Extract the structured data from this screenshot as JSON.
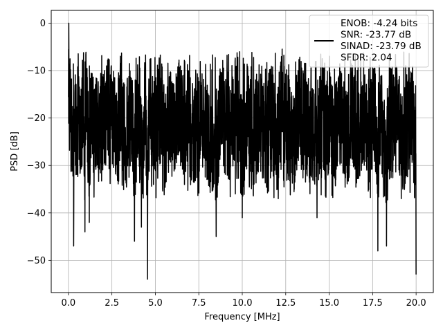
{
  "chart_data": {
    "type": "line",
    "title": "",
    "xlabel": "Frequency [MHz]",
    "ylabel": "PSD [dB]",
    "xlim": [
      -0.99,
      20.99
    ],
    "ylim": [
      -56.8,
      2.7
    ],
    "xticks": [
      0,
      2.5,
      5,
      7.5,
      10,
      12.5,
      15,
      17.5,
      20
    ],
    "xtick_labels": [
      "0.0",
      "2.5",
      "5.0",
      "7.5",
      "10.0",
      "12.5",
      "15.0",
      "17.5",
      "20.0"
    ],
    "yticks": [
      0,
      -10,
      -20,
      -30,
      -40,
      -50
    ],
    "ytick_labels": [
      "0",
      "−10",
      "−20",
      "−30",
      "−40",
      "−50"
    ],
    "grid": true,
    "legend_position": "top-right",
    "series": [
      {
        "name": "ENOB: -4.24 bits\nSNR: -23.77 dB\nSINAD: -23.79 dB\nSFDR: 2.04",
        "color": "#000000",
        "description": "dense noisy spectrum, mostly between -10 and -30 dB",
        "x": [
          0.0,
          0.02,
          0.04,
          0.06,
          0.1,
          0.15,
          0.2,
          0.25,
          0.3,
          0.35,
          0.45,
          0.55,
          0.65,
          0.75,
          0.85,
          0.95,
          1.0,
          1.2,
          1.3,
          1.5,
          1.8,
          2.0,
          2.2,
          2.5,
          2.8,
          3.0,
          3.3,
          3.6,
          3.8,
          4.0,
          4.2,
          4.4,
          4.55,
          4.7,
          5.0,
          5.3,
          5.6,
          5.8,
          6.0,
          6.3,
          6.6,
          6.9,
          7.2,
          7.5,
          7.8,
          8.1,
          8.5,
          8.8,
          9.0,
          9.3,
          9.6,
          10.0,
          10.3,
          10.6,
          11.0,
          11.3,
          11.6,
          12.0,
          12.3,
          12.6,
          13.0,
          13.3,
          13.6,
          14.0,
          14.3,
          14.6,
          14.8,
          15.0,
          15.3,
          15.6,
          16.0,
          16.3,
          16.6,
          17.0,
          17.3,
          17.6,
          17.8,
          18.0,
          18.3,
          18.6,
          18.9,
          19.2,
          19.5,
          19.8,
          20.0
        ],
        "y": [
          -19,
          0,
          -6,
          -28,
          -13,
          -18,
          -22,
          -26,
          -47,
          -16,
          -34,
          -12,
          -29,
          -22,
          -14,
          -44,
          -10,
          -42,
          -16,
          -30,
          -18,
          -24,
          -14,
          -19,
          -31,
          -11,
          -38,
          -21,
          -46,
          -16,
          -43,
          -24,
          -54,
          -15,
          -28,
          -12,
          -36,
          -20,
          -33,
          -14,
          -26,
          -20,
          -35,
          -17,
          -24,
          -34,
          -45,
          -13,
          -27,
          -31,
          -18,
          -41,
          -15,
          -39,
          -22,
          -35,
          -18,
          -38,
          -11,
          -25,
          -36,
          -14,
          -28,
          -30,
          -41,
          -15,
          -32,
          -22,
          -36,
          -19,
          -38,
          -15,
          -31,
          -24,
          -30,
          -17,
          -48,
          -22,
          -47,
          -30,
          -18,
          -37,
          -24,
          -21,
          -53
        ]
      }
    ]
  }
}
